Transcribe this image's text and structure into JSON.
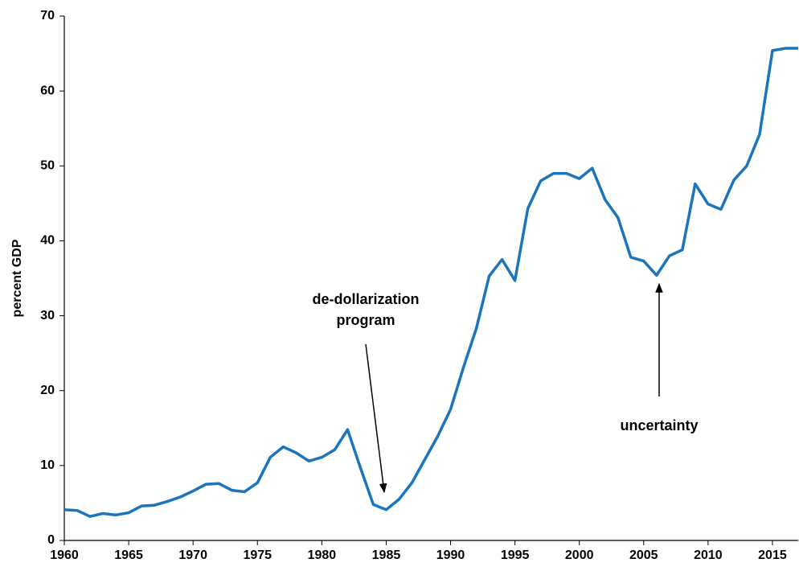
{
  "chart_data": {
    "type": "line",
    "y_label": "percent GDP",
    "x": [
      1960,
      1961,
      1962,
      1963,
      1964,
      1965,
      1966,
      1967,
      1968,
      1969,
      1970,
      1971,
      1972,
      1973,
      1974,
      1975,
      1976,
      1977,
      1978,
      1979,
      1980,
      1981,
      1982,
      1983,
      1984,
      1985,
      1986,
      1987,
      1988,
      1989,
      1990,
      1991,
      1992,
      1993,
      1994,
      1995,
      1996,
      1997,
      1998,
      1999,
      2000,
      2001,
      2002,
      2003,
      2004,
      2005,
      2006,
      2007,
      2008,
      2009,
      2010,
      2011,
      2012,
      2013,
      2014,
      2015,
      2016,
      2017
    ],
    "series": [
      {
        "color": "#1a75bc",
        "values": [
          4.1,
          4.0,
          3.2,
          3.6,
          3.4,
          3.7,
          4.6,
          4.7,
          5.2,
          5.8,
          6.6,
          7.5,
          7.6,
          6.7,
          6.5,
          7.7,
          11.1,
          12.5,
          11.7,
          10.6,
          11.1,
          12.1,
          14.8,
          9.7,
          4.8,
          4.1,
          5.5,
          7.7,
          10.8,
          13.9,
          17.5,
          23.1,
          28.3,
          35.3,
          37.5,
          34.7,
          44.3,
          48.0,
          49.0,
          49.0,
          48.3,
          49.7,
          45.5,
          43.1,
          37.8,
          37.3,
          35.4,
          38.0,
          38.8,
          47.6,
          44.9,
          44.2,
          48.1,
          50.0,
          54.2,
          65.4,
          65.7,
          65.7
        ]
      }
    ],
    "xlim": [
      1960,
      2017
    ],
    "xticks": [
      1960,
      1965,
      1970,
      1975,
      1980,
      1985,
      1990,
      1995,
      2000,
      2005,
      2010,
      2015
    ],
    "ylim": [
      0,
      70
    ],
    "yticks": [
      0,
      10,
      20,
      30,
      40,
      50,
      60,
      70
    ],
    "annotations": [
      {
        "lines": [
          "de-dollarization",
          "program"
        ]
      },
      {
        "lines": [
          "uncertainty"
        ]
      }
    ]
  }
}
